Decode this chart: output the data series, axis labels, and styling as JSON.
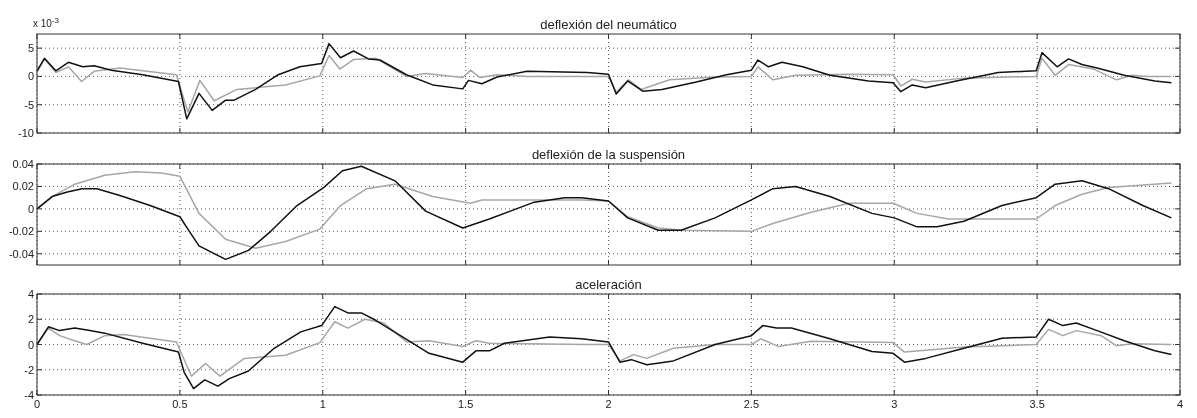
{
  "chart_data": [
    {
      "type": "line",
      "title": "deflexión del neumático",
      "annotations": [
        "x 10$^{-3}$"
      ],
      "xlim": [
        0,
        4
      ],
      "xticks": [
        0,
        0.5,
        1,
        1.5,
        2,
        2.5,
        3,
        3.5,
        4
      ],
      "ylim": [
        -10,
        7.5
      ],
      "yticks": [
        -10,
        -5,
        0,
        5
      ],
      "grid": true,
      "tick_labels": "y",
      "series": [
        {
          "color": "#a6a6a6",
          "x": [
            0,
            0.026,
            0.066,
            0.11,
            0.156,
            0.2,
            0.29,
            0.488,
            0.528,
            0.57,
            0.62,
            0.7,
            0.87,
            0.99,
            1.022,
            1.06,
            1.108,
            1.187,
            1.293,
            1.36,
            1.49,
            1.517,
            1.55,
            1.61,
            1.715,
            2.0,
            2.027,
            2.07,
            2.114,
            2.214,
            2.373,
            2.5,
            2.523,
            2.575,
            2.655,
            2.842,
            2.996,
            3.023,
            3.063,
            3.11,
            3.244,
            3.497,
            3.517,
            3.563,
            3.61,
            3.698,
            3.778,
            3.832,
            3.885,
            3.97
          ],
          "values": [
            0.7,
            3.1,
            0.7,
            1.7,
            -0.9,
            0.9,
            1.5,
            0.3,
            -6.3,
            -0.7,
            -4.3,
            -2.3,
            -1.5,
            0.1,
            3.7,
            1.3,
            3,
            3.2,
            0,
            0.5,
            -0.2,
            1.1,
            -0.2,
            0.3,
            0,
            0,
            -2.8,
            -0.6,
            -2.3,
            -0.6,
            -0.1,
            0,
            1.7,
            -0.6,
            0.2,
            0.4,
            0.3,
            -1.7,
            -0.5,
            -1,
            -0.3,
            0,
            3.2,
            0.2,
            2.1,
            1.3,
            -0.6,
            0.2,
            0,
            0
          ]
        },
        {
          "color": "#111111",
          "x": [
            0,
            0.026,
            0.066,
            0.11,
            0.16,
            0.2,
            0.26,
            0.37,
            0.495,
            0.524,
            0.567,
            0.613,
            0.66,
            0.69,
            0.765,
            0.844,
            0.92,
            0.996,
            1.022,
            1.062,
            1.108,
            1.16,
            1.2,
            1.293,
            1.385,
            1.49,
            1.51,
            1.557,
            1.61,
            1.715,
            1.926,
            2.0,
            2.027,
            2.067,
            2.12,
            2.187,
            2.307,
            2.413,
            2.5,
            2.523,
            2.56,
            2.607,
            2.68,
            2.775,
            2.91,
            2.996,
            3.023,
            3.063,
            3.11,
            3.217,
            3.364,
            3.497,
            3.517,
            3.57,
            3.61,
            3.657,
            3.71,
            3.805,
            3.912,
            3.97
          ],
          "values": [
            1,
            3.2,
            1,
            2.5,
            1.7,
            1.9,
            1.1,
            0.3,
            -0.9,
            -7.5,
            -3,
            -6,
            -4.2,
            -4.2,
            -2.3,
            0.3,
            1.7,
            2.3,
            5.8,
            3.3,
            4.5,
            3.1,
            2.9,
            0.3,
            -1.5,
            -2.2,
            -0.7,
            -1.3,
            -0.1,
            0.9,
            0.7,
            0.4,
            -3.1,
            -0.8,
            -2.6,
            -2.3,
            -1,
            0.3,
            1.1,
            2.9,
            1.7,
            2.5,
            1.7,
            0.2,
            -0.8,
            -1.1,
            -2.7,
            -1.5,
            -2,
            -0.8,
            0.7,
            1,
            4.2,
            1.7,
            3.1,
            2.1,
            1.5,
            0.2,
            -0.8,
            -1.1
          ]
        }
      ]
    },
    {
      "type": "line",
      "title": "deflexión de la suspensión",
      "xlim": [
        0,
        4
      ],
      "xticks": [
        0,
        0.5,
        1,
        1.5,
        2,
        2.5,
        3,
        3.5,
        4
      ],
      "ylim": [
        -0.05,
        0.04
      ],
      "yticks": [
        -0.04,
        -0.02,
        0,
        0.02,
        0.04
      ],
      "grid": true,
      "tick_labels": "y",
      "series": [
        {
          "color": "#a6a6a6",
          "x": [
            0,
            0.053,
            0.132,
            0.237,
            0.343,
            0.435,
            0.5,
            0.567,
            0.66,
            0.765,
            0.87,
            0.99,
            1.062,
            1.154,
            1.253,
            1.385,
            1.517,
            1.557,
            1.906,
            2.0,
            2.067,
            2.174,
            2.254,
            2.5,
            2.575,
            2.709,
            2.842,
            2.996,
            3.08,
            3.19,
            3.497,
            3.563,
            3.657,
            3.75,
            3.97
          ],
          "values": [
            0,
            0.011,
            0.022,
            0.03,
            0.033,
            0.032,
            0.029,
            -0.004,
            -0.027,
            -0.035,
            -0.029,
            -0.018,
            0.003,
            0.018,
            0.022,
            0.011,
            0.005,
            0.008,
            0.008,
            0.007,
            -0.007,
            -0.017,
            -0.019,
            -0.02,
            -0.013,
            -0.003,
            0.005,
            0.005,
            -0.004,
            -0.009,
            -0.009,
            0.003,
            0.013,
            0.019,
            0.023
          ]
        },
        {
          "color": "#111111",
          "x": [
            0,
            0.053,
            0.106,
            0.158,
            0.21,
            0.29,
            0.396,
            0.5,
            0.528,
            0.567,
            0.66,
            0.74,
            0.818,
            0.91,
            1.003,
            1.069,
            1.135,
            1.253,
            1.36,
            1.49,
            1.583,
            1.74,
            1.847,
            1.906,
            2.0,
            2.067,
            2.174,
            2.254,
            2.373,
            2.5,
            2.575,
            2.655,
            2.775,
            2.922,
            3.0,
            3.08,
            3.15,
            3.244,
            3.377,
            3.497,
            3.563,
            3.657,
            3.75,
            3.87,
            3.97
          ],
          "values": [
            0,
            0.011,
            0.015,
            0.018,
            0.018,
            0.012,
            0.003,
            -0.007,
            -0.018,
            -0.033,
            -0.045,
            -0.037,
            -0.02,
            0.003,
            0.019,
            0.034,
            0.038,
            0.025,
            -0.002,
            -0.017,
            -0.009,
            0.006,
            0.01,
            0.01,
            0.007,
            -0.008,
            -0.019,
            -0.019,
            -0.008,
            0.008,
            0.018,
            0.02,
            0.011,
            -0.004,
            -0.008,
            -0.016,
            -0.016,
            -0.011,
            0.003,
            0.01,
            0.022,
            0.025,
            0.018,
            0.003,
            -0.008
          ]
        }
      ]
    },
    {
      "type": "line",
      "title": "aceleración",
      "xlim": [
        0,
        4
      ],
      "xticks": [
        0,
        0.5,
        1,
        1.5,
        2,
        2.5,
        3,
        3.5,
        4
      ],
      "ylim": [
        -4,
        4
      ],
      "yticks": [
        -4,
        -2,
        0,
        2,
        4
      ],
      "grid": true,
      "series": [
        {
          "color": "#a6a6a6",
          "x": [
            0,
            0.04,
            0.079,
            0.132,
            0.174,
            0.237,
            0.303,
            0.488,
            0.54,
            0.59,
            0.64,
            0.726,
            0.87,
            0.99,
            1.042,
            1.088,
            1.148,
            1.214,
            1.293,
            1.372,
            1.49,
            1.536,
            1.583,
            1.926,
            2.0,
            2.04,
            2.087,
            2.134,
            2.227,
            2.373,
            2.5,
            2.533,
            2.594,
            2.709,
            2.996,
            3.036,
            3.11,
            3.244,
            3.497,
            3.54,
            3.59,
            3.637,
            3.724,
            3.778,
            3.832,
            3.97
          ],
          "values": [
            0,
            1.3,
            0.7,
            0.3,
            0,
            0.7,
            0.8,
            0.2,
            -2.5,
            -1.5,
            -2.5,
            -1.1,
            -0.85,
            0.15,
            1.8,
            1.3,
            2,
            1.7,
            0.2,
            0.3,
            -0.15,
            0.3,
            0.1,
            0,
            0,
            -1.3,
            -0.8,
            -1.1,
            -0.3,
            0,
            0,
            0.45,
            -0.15,
            0.25,
            0.15,
            -0.6,
            -0.45,
            -0.2,
            0,
            1.2,
            0.7,
            1.1,
            0.7,
            -0.1,
            0.05,
            0
          ]
        },
        {
          "color": "#111111",
          "x": [
            0,
            0.04,
            0.079,
            0.132,
            0.185,
            0.237,
            0.37,
            0.495,
            0.515,
            0.548,
            0.587,
            0.633,
            0.673,
            0.74,
            0.83,
            0.923,
            0.996,
            1.042,
            1.088,
            1.135,
            1.187,
            1.293,
            1.372,
            1.49,
            1.536,
            1.583,
            1.636,
            1.794,
            1.906,
            2.0,
            2.04,
            2.08,
            2.134,
            2.227,
            2.373,
            2.5,
            2.54,
            2.588,
            2.64,
            2.775,
            2.922,
            2.996,
            3.036,
            3.11,
            3.244,
            3.377,
            3.497,
            3.54,
            3.59,
            3.637,
            3.71,
            3.805,
            3.912,
            3.97
          ],
          "values": [
            0,
            1.4,
            1.1,
            1.3,
            1.1,
            0.9,
            0.1,
            -0.6,
            -2.2,
            -3.5,
            -2.8,
            -3.3,
            -2.7,
            -2.1,
            -0.3,
            1,
            1.5,
            3,
            2.5,
            2.5,
            1.9,
            0.4,
            -0.7,
            -1.4,
            -0.5,
            -0.5,
            0.1,
            0.6,
            0.45,
            0.2,
            -1.4,
            -1.2,
            -1.6,
            -1.3,
            0,
            0.7,
            1.5,
            1.3,
            1.3,
            0.45,
            -0.55,
            -0.7,
            -1.4,
            -1.1,
            -0.3,
            0.5,
            0.6,
            2,
            1.5,
            1.7,
            1.1,
            0.3,
            -0.5,
            -0.8
          ]
        }
      ]
    }
  ]
}
